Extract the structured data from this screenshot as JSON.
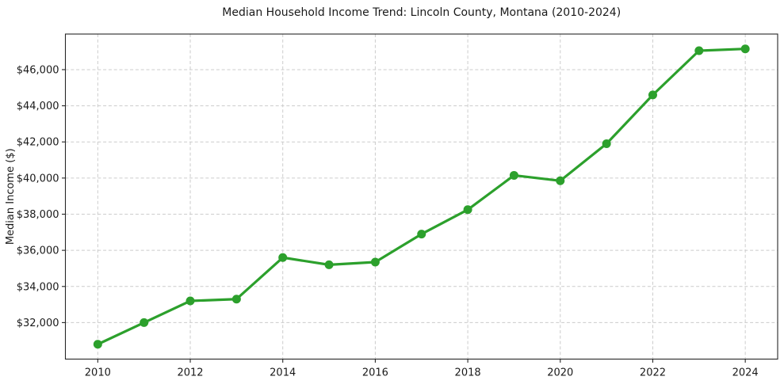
{
  "chart_data": {
    "type": "line",
    "title": "Median Household Income Trend: Lincoln County, Montana (2010-2024)",
    "xlabel": "",
    "ylabel": "Median Income ($)",
    "x": [
      2010,
      2011,
      2012,
      2013,
      2014,
      2015,
      2016,
      2017,
      2018,
      2019,
      2020,
      2021,
      2022,
      2023,
      2024
    ],
    "series": [
      {
        "name": "Median Household Income",
        "values": [
          30800,
          32000,
          33200,
          33300,
          35600,
          35200,
          35350,
          36900,
          38250,
          40150,
          39850,
          41900,
          44600,
          47050,
          47150
        ],
        "color": "#2ca02c",
        "marker": "circle",
        "line_width": 3.2,
        "marker_radius": 5.5
      }
    ],
    "xlim": [
      2009.3,
      2024.7
    ],
    "ylim": [
      29980,
      47970
    ],
    "xticks": {
      "values": [
        2010,
        2012,
        2014,
        2016,
        2018,
        2020,
        2022,
        2024
      ],
      "labels": [
        "2010",
        "2012",
        "2014",
        "2016",
        "2018",
        "2020",
        "2022",
        "2024"
      ]
    },
    "yticks": {
      "values": [
        32000,
        34000,
        36000,
        38000,
        40000,
        42000,
        44000,
        46000
      ],
      "labels": [
        "$32,000",
        "$34,000",
        "$36,000",
        "$38,000",
        "$40,000",
        "$42,000",
        "$44,000",
        "$46,000"
      ]
    },
    "grid": {
      "show": true,
      "color": "#cccccc",
      "style": "dashed"
    },
    "legend": {
      "show": false
    },
    "colors": {
      "background": "#ffffff",
      "axis": "#262626",
      "text": "#1a1a1a",
      "accent": "#2ca02c"
    }
  }
}
